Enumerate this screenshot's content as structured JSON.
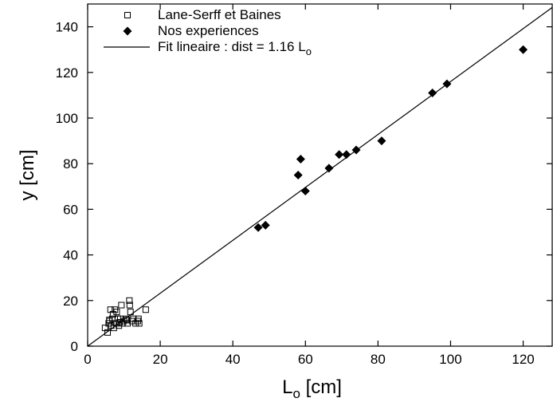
{
  "chart_data": {
    "type": "scatter",
    "xlabel_main": "L",
    "xlabel_sub": "o",
    "xlabel_unit": " [cm]",
    "ylabel": "y [cm]",
    "xlim": [
      0,
      128
    ],
    "ylim": [
      0,
      150
    ],
    "x_ticks": [
      0,
      20,
      40,
      60,
      80,
      100,
      120
    ],
    "y_ticks": [
      0,
      20,
      40,
      60,
      80,
      100,
      120,
      140
    ],
    "grid": false,
    "legend_position": "top-left",
    "series": [
      {
        "name": "Lane-Serff et Baines",
        "marker": "open-square",
        "color": "#000000",
        "points": [
          [
            4.8,
            8
          ],
          [
            5.5,
            6
          ],
          [
            5.8,
            10
          ],
          [
            6.0,
            11
          ],
          [
            6.3,
            16
          ],
          [
            6.5,
            9
          ],
          [
            6.8,
            12
          ],
          [
            7.0,
            14
          ],
          [
            7.2,
            8
          ],
          [
            7.5,
            16
          ],
          [
            7.8,
            10
          ],
          [
            8.0,
            15
          ],
          [
            8.3,
            12
          ],
          [
            8.6,
            9
          ],
          [
            9.0,
            12
          ],
          [
            9.3,
            18
          ],
          [
            9.6,
            10
          ],
          [
            10.0,
            11
          ],
          [
            10.5,
            12
          ],
          [
            11.0,
            10
          ],
          [
            11.5,
            20
          ],
          [
            11.6,
            18
          ],
          [
            11.8,
            15
          ],
          [
            12.2,
            11
          ],
          [
            12.6,
            12
          ],
          [
            13.2,
            10
          ],
          [
            13.8,
            11
          ],
          [
            14.0,
            12
          ],
          [
            14.2,
            10
          ],
          [
            16.0,
            16
          ],
          [
            6.0,
            11.5
          ],
          [
            8.8,
            10.5
          ],
          [
            10.8,
            11.5
          ]
        ]
      },
      {
        "name": "Nos experiences",
        "marker": "filled-diamond",
        "color": "#000000",
        "points": [
          [
            47,
            52
          ],
          [
            49,
            53
          ],
          [
            58,
            75
          ],
          [
            58.7,
            82
          ],
          [
            60,
            68
          ],
          [
            66.5,
            78
          ],
          [
            69.3,
            84
          ],
          [
            71.3,
            84
          ],
          [
            74,
            86
          ],
          [
            81,
            90
          ],
          [
            95,
            111
          ],
          [
            99,
            115
          ],
          [
            120,
            130
          ]
        ]
      }
    ],
    "fit": {
      "name_prefix": "Fit lineaire : dist = 1.16 L",
      "name_sub": "o",
      "slope": 1.16
    }
  }
}
